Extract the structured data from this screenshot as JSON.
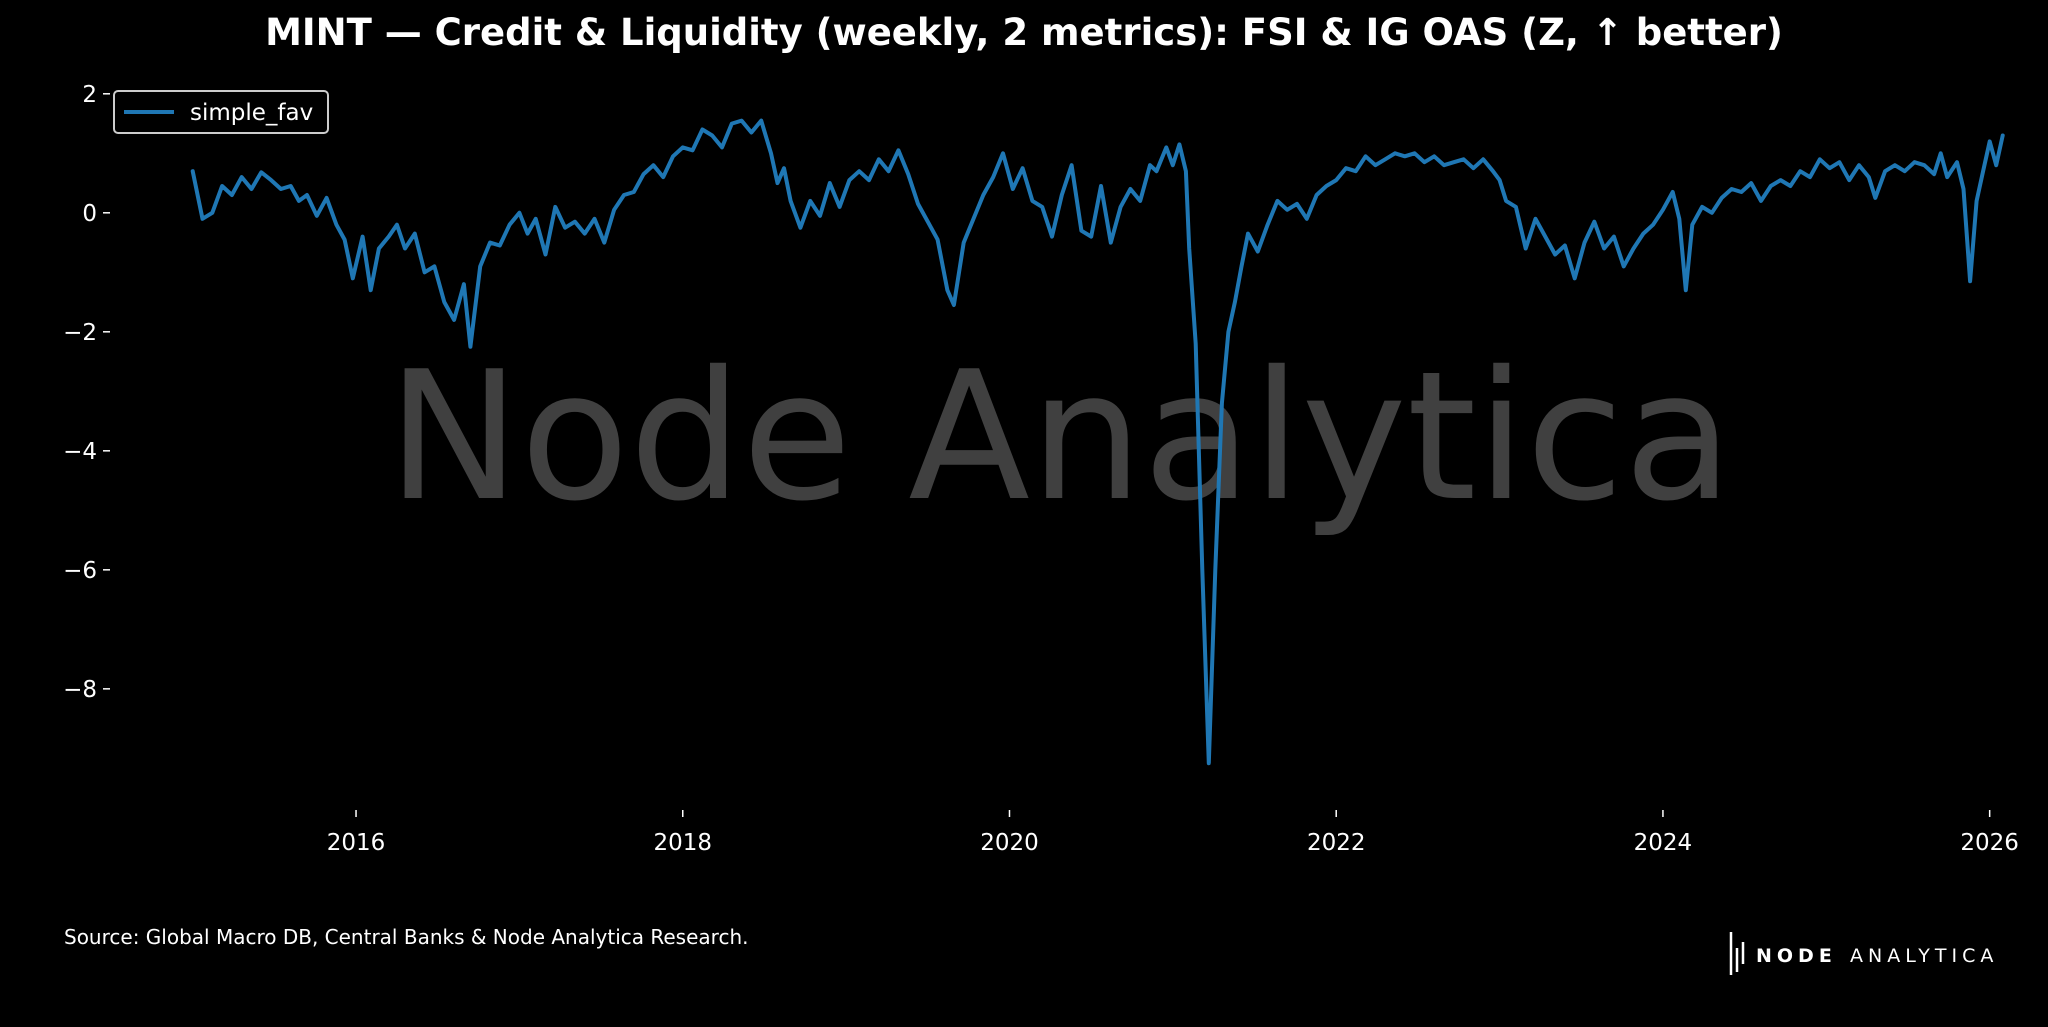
{
  "chart_data": {
    "type": "line",
    "title": "MINT — Credit & Liquidity (weekly, 2 metrics): FSI & IG OAS (Z, ↑ better)",
    "xlabel": "",
    "ylabel": "",
    "xlim": [
      2014.8,
      2026.1
    ],
    "ylim": [
      -9.7,
      2.4
    ],
    "x_ticks": [
      2016,
      2018,
      2020,
      2022,
      2024,
      2026
    ],
    "x_tick_labels": [
      "2016",
      "2018",
      "2020",
      "2022",
      "2024",
      "2026"
    ],
    "y_ticks": [
      2,
      0,
      -2,
      -4,
      -6,
      -8
    ],
    "y_tick_labels": [
      "2",
      "0",
      "−2",
      "−4",
      "−6",
      "−8"
    ],
    "grid": false,
    "legend_position": "top-left",
    "series": [
      {
        "name": "simple_fav",
        "color": "#1f77b4",
        "points": [
          [
            2015.0,
            0.7
          ],
          [
            2015.06,
            -0.1
          ],
          [
            2015.12,
            0.0
          ],
          [
            2015.18,
            0.45
          ],
          [
            2015.24,
            0.3
          ],
          [
            2015.3,
            0.6
          ],
          [
            2015.36,
            0.4
          ],
          [
            2015.42,
            0.68
          ],
          [
            2015.48,
            0.55
          ],
          [
            2015.54,
            0.4
          ],
          [
            2015.6,
            0.45
          ],
          [
            2015.65,
            0.2
          ],
          [
            2015.7,
            0.3
          ],
          [
            2015.76,
            -0.05
          ],
          [
            2015.82,
            0.25
          ],
          [
            2015.88,
            -0.2
          ],
          [
            2015.93,
            -0.45
          ],
          [
            2015.98,
            -1.1
          ],
          [
            2016.04,
            -0.4
          ],
          [
            2016.09,
            -1.3
          ],
          [
            2016.14,
            -0.6
          ],
          [
            2016.2,
            -0.4
          ],
          [
            2016.25,
            -0.2
          ],
          [
            2016.3,
            -0.6
          ],
          [
            2016.36,
            -0.35
          ],
          [
            2016.42,
            -1.0
          ],
          [
            2016.48,
            -0.9
          ],
          [
            2016.54,
            -1.5
          ],
          [
            2016.6,
            -1.8
          ],
          [
            2016.66,
            -1.2
          ],
          [
            2016.7,
            -2.25
          ],
          [
            2016.76,
            -0.9
          ],
          [
            2016.82,
            -0.5
          ],
          [
            2016.88,
            -0.55
          ],
          [
            2016.94,
            -0.2
          ],
          [
            2017.0,
            0.0
          ],
          [
            2017.05,
            -0.35
          ],
          [
            2017.1,
            -0.1
          ],
          [
            2017.16,
            -0.7
          ],
          [
            2017.22,
            0.1
          ],
          [
            2017.28,
            -0.25
          ],
          [
            2017.34,
            -0.15
          ],
          [
            2017.4,
            -0.35
          ],
          [
            2017.46,
            -0.1
          ],
          [
            2017.52,
            -0.5
          ],
          [
            2017.58,
            0.05
          ],
          [
            2017.64,
            0.3
          ],
          [
            2017.7,
            0.35
          ],
          [
            2017.76,
            0.65
          ],
          [
            2017.82,
            0.8
          ],
          [
            2017.88,
            0.6
          ],
          [
            2017.94,
            0.95
          ],
          [
            2018.0,
            1.1
          ],
          [
            2018.06,
            1.05
          ],
          [
            2018.12,
            1.4
          ],
          [
            2018.18,
            1.3
          ],
          [
            2018.24,
            1.1
          ],
          [
            2018.3,
            1.5
          ],
          [
            2018.36,
            1.55
          ],
          [
            2018.42,
            1.35
          ],
          [
            2018.48,
            1.55
          ],
          [
            2018.54,
            1.0
          ],
          [
            2018.58,
            0.5
          ],
          [
            2018.62,
            0.75
          ],
          [
            2018.66,
            0.2
          ],
          [
            2018.72,
            -0.25
          ],
          [
            2018.78,
            0.2
          ],
          [
            2018.84,
            -0.05
          ],
          [
            2018.9,
            0.5
          ],
          [
            2018.96,
            0.1
          ],
          [
            2019.02,
            0.55
          ],
          [
            2019.08,
            0.7
          ],
          [
            2019.14,
            0.55
          ],
          [
            2019.2,
            0.9
          ],
          [
            2019.26,
            0.7
          ],
          [
            2019.32,
            1.05
          ],
          [
            2019.38,
            0.65
          ],
          [
            2019.44,
            0.15
          ],
          [
            2019.5,
            -0.15
          ],
          [
            2019.56,
            -0.45
          ],
          [
            2019.62,
            -1.3
          ],
          [
            2019.66,
            -1.55
          ],
          [
            2019.72,
            -0.5
          ],
          [
            2019.78,
            -0.1
          ],
          [
            2019.84,
            0.3
          ],
          [
            2019.9,
            0.6
          ],
          [
            2019.96,
            1.0
          ],
          [
            2020.02,
            0.4
          ],
          [
            2020.08,
            0.75
          ],
          [
            2020.14,
            0.2
          ],
          [
            2020.2,
            0.1
          ],
          [
            2020.26,
            -0.4
          ],
          [
            2020.32,
            0.3
          ],
          [
            2020.38,
            0.8
          ],
          [
            2020.44,
            -0.3
          ],
          [
            2020.5,
            -0.4
          ],
          [
            2020.56,
            0.45
          ],
          [
            2020.62,
            -0.5
          ],
          [
            2020.68,
            0.1
          ],
          [
            2020.74,
            0.4
          ],
          [
            2020.8,
            0.2
          ],
          [
            2020.86,
            0.8
          ],
          [
            2020.9,
            0.7
          ],
          [
            2020.96,
            1.1
          ],
          [
            2021.0,
            0.8
          ],
          [
            2021.04,
            1.15
          ],
          [
            2021.08,
            0.7
          ],
          [
            2021.1,
            -0.6
          ],
          [
            2021.14,
            -2.2
          ],
          [
            2021.18,
            -6.0
          ],
          [
            2021.22,
            -9.25
          ],
          [
            2021.26,
            -6.0
          ],
          [
            2021.3,
            -3.2
          ],
          [
            2021.34,
            -2.0
          ],
          [
            2021.38,
            -1.5
          ],
          [
            2021.42,
            -0.9
          ],
          [
            2021.46,
            -0.35
          ],
          [
            2021.52,
            -0.65
          ],
          [
            2021.58,
            -0.2
          ],
          [
            2021.64,
            0.2
          ],
          [
            2021.7,
            0.05
          ],
          [
            2021.76,
            0.15
          ],
          [
            2021.82,
            -0.1
          ],
          [
            2021.88,
            0.3
          ],
          [
            2021.94,
            0.45
          ],
          [
            2022.0,
            0.55
          ],
          [
            2022.06,
            0.75
          ],
          [
            2022.12,
            0.7
          ],
          [
            2022.18,
            0.95
          ],
          [
            2022.24,
            0.8
          ],
          [
            2022.3,
            0.9
          ],
          [
            2022.36,
            1.0
          ],
          [
            2022.42,
            0.95
          ],
          [
            2022.48,
            1.0
          ],
          [
            2022.54,
            0.85
          ],
          [
            2022.6,
            0.95
          ],
          [
            2022.66,
            0.8
          ],
          [
            2022.72,
            0.85
          ],
          [
            2022.78,
            0.9
          ],
          [
            2022.84,
            0.75
          ],
          [
            2022.9,
            0.9
          ],
          [
            2022.96,
            0.7
          ],
          [
            2023.0,
            0.55
          ],
          [
            2023.04,
            0.2
          ],
          [
            2023.1,
            0.1
          ],
          [
            2023.16,
            -0.6
          ],
          [
            2023.22,
            -0.1
          ],
          [
            2023.28,
            -0.4
          ],
          [
            2023.34,
            -0.7
          ],
          [
            2023.4,
            -0.55
          ],
          [
            2023.46,
            -1.1
          ],
          [
            2023.52,
            -0.5
          ],
          [
            2023.58,
            -0.15
          ],
          [
            2023.64,
            -0.6
          ],
          [
            2023.7,
            -0.4
          ],
          [
            2023.76,
            -0.9
          ],
          [
            2023.82,
            -0.6
          ],
          [
            2023.88,
            -0.35
          ],
          [
            2023.94,
            -0.2
          ],
          [
            2024.0,
            0.05
          ],
          [
            2024.06,
            0.35
          ],
          [
            2024.1,
            -0.1
          ],
          [
            2024.14,
            -1.3
          ],
          [
            2024.18,
            -0.2
          ],
          [
            2024.24,
            0.1
          ],
          [
            2024.3,
            0.0
          ],
          [
            2024.36,
            0.25
          ],
          [
            2024.42,
            0.4
          ],
          [
            2024.48,
            0.35
          ],
          [
            2024.54,
            0.5
          ],
          [
            2024.6,
            0.2
          ],
          [
            2024.66,
            0.45
          ],
          [
            2024.72,
            0.55
          ],
          [
            2024.78,
            0.45
          ],
          [
            2024.84,
            0.7
          ],
          [
            2024.9,
            0.6
          ],
          [
            2024.96,
            0.9
          ],
          [
            2025.02,
            0.75
          ],
          [
            2025.08,
            0.85
          ],
          [
            2025.14,
            0.55
          ],
          [
            2025.2,
            0.8
          ],
          [
            2025.26,
            0.6
          ],
          [
            2025.3,
            0.25
          ],
          [
            2025.36,
            0.7
          ],
          [
            2025.42,
            0.8
          ],
          [
            2025.48,
            0.7
          ],
          [
            2025.54,
            0.85
          ],
          [
            2025.6,
            0.8
          ],
          [
            2025.66,
            0.65
          ],
          [
            2025.7,
            1.0
          ],
          [
            2025.74,
            0.6
          ],
          [
            2025.8,
            0.85
          ],
          [
            2025.84,
            0.4
          ],
          [
            2025.88,
            -1.15
          ],
          [
            2025.92,
            0.2
          ],
          [
            2025.96,
            0.7
          ],
          [
            2026.0,
            1.2
          ],
          [
            2026.04,
            0.8
          ],
          [
            2026.08,
            1.3
          ]
        ]
      }
    ],
    "annotations": [
      "Node Analytica"
    ]
  },
  "footer": {
    "source": "Source: Global Macro DB, Central Banks & Node Analytica Research.",
    "brand_bold": "NODE",
    "brand_light": "ANALYTICA"
  }
}
